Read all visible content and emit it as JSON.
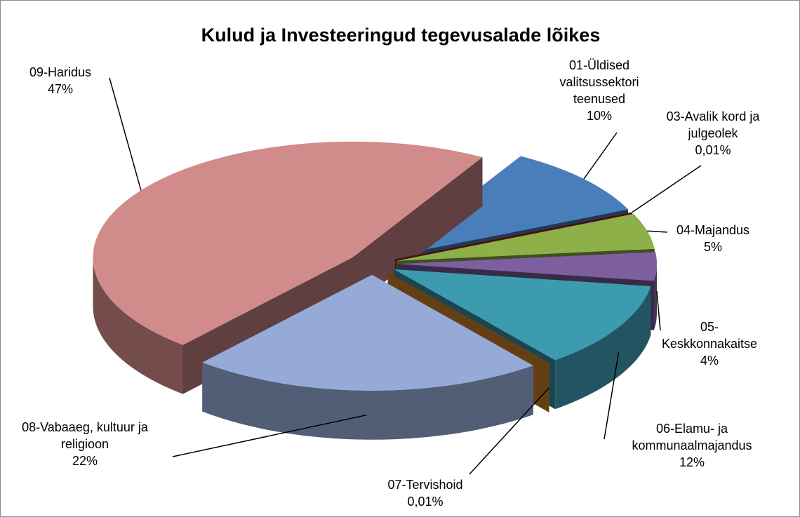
{
  "chart_data": {
    "type": "pie",
    "title": "Kulud ja Investeeringud tegevusalade lõikes",
    "categories": [
      "01-Üldised valitsussektori teenused",
      "03-Avalik kord ja julgeolek",
      "04-Majandus",
      "05-Keskkonnakaitse",
      "06-Elamu- ja kommunaalmajandus",
      "07-Tervishoid",
      "08-Vabaaeg, kultuur ja religioon",
      "09-Haridus"
    ],
    "values": [
      10,
      0.01,
      5,
      4,
      12,
      0.01,
      22,
      47
    ],
    "value_labels": [
      "10%",
      "0,01%",
      "5%",
      "4%",
      "12%",
      "0,01%",
      "22%",
      "47%"
    ],
    "colors": [
      "#4a7ebb",
      "#9b2222",
      "#8db048",
      "#7d5fa0",
      "#3d9bb0",
      "#e08b2c",
      "#95aad6",
      "#d28b8b"
    ]
  }
}
